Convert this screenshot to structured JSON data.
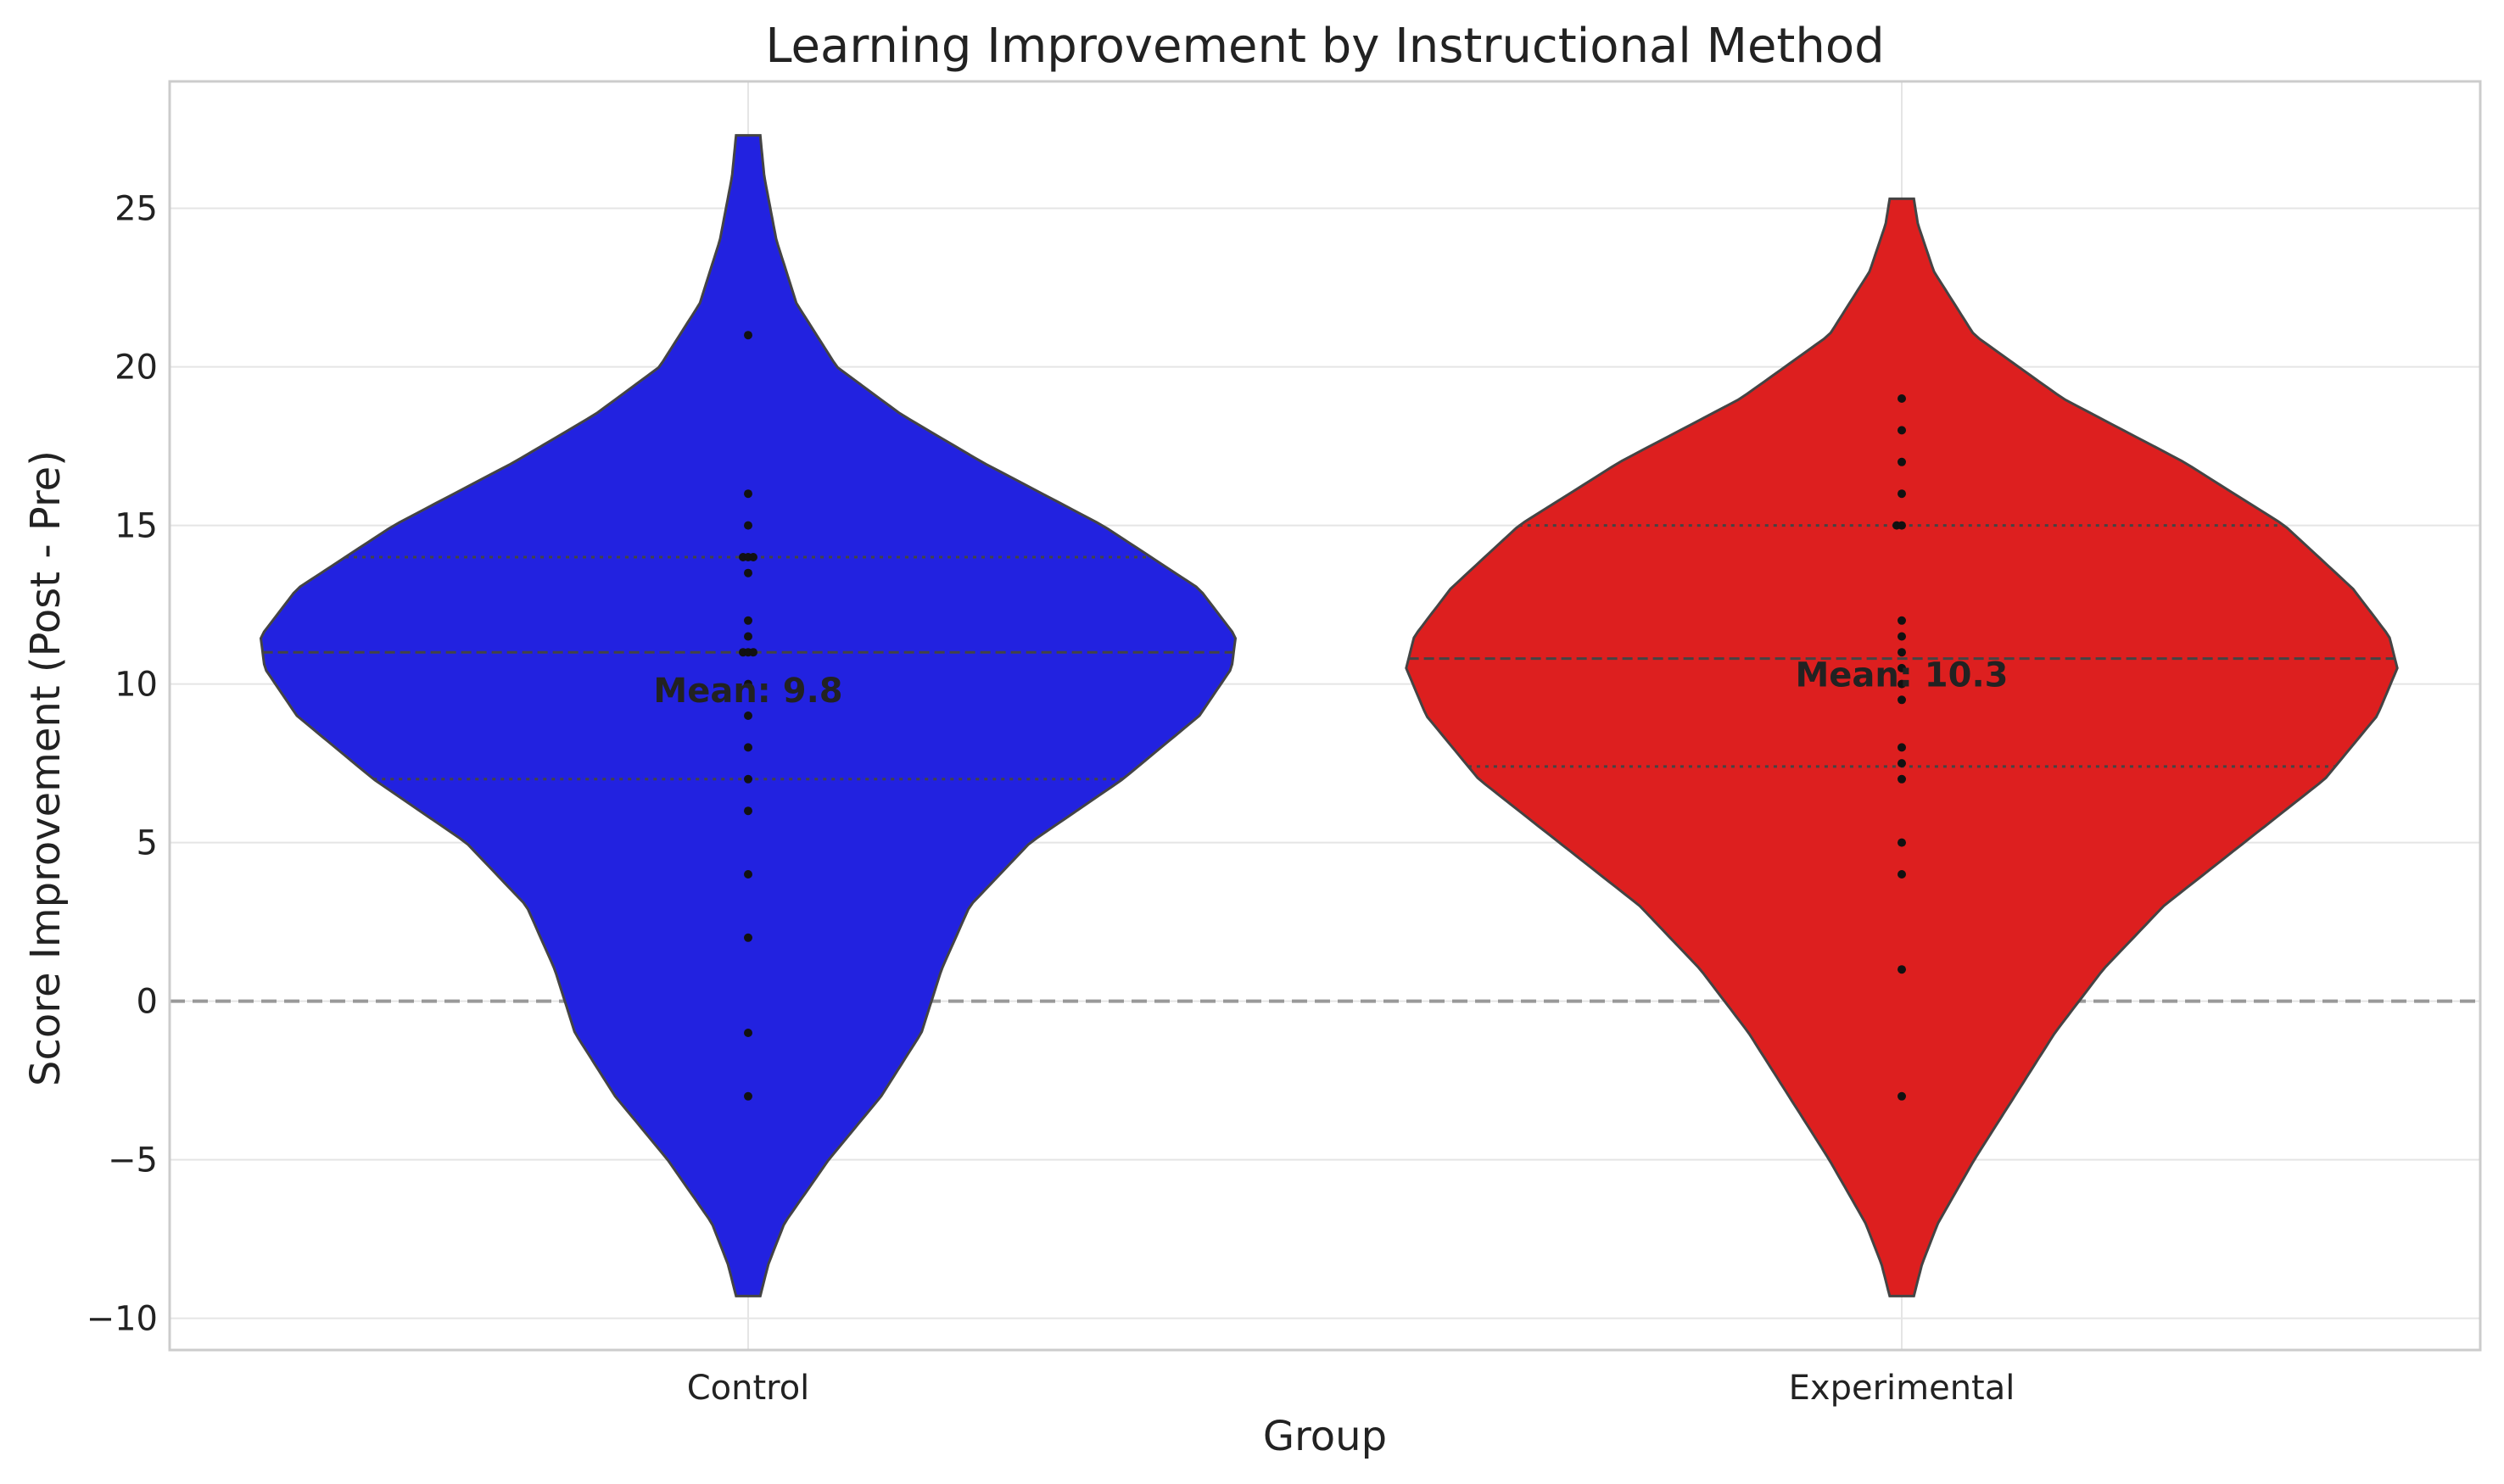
{
  "chart_data": {
    "type": "violin",
    "title": "Learning Improvement by Instructional Method",
    "xlabel": "Group",
    "ylabel": "Score Improvement (Post - Pre)",
    "ylim": [
      -11,
      29
    ],
    "yticks": [
      -10,
      -5,
      0,
      5,
      10,
      15,
      20,
      25
    ],
    "ytick_labels": [
      "−10",
      "−5",
      "0",
      "5",
      "10",
      "15",
      "20",
      "25"
    ],
    "grid": true,
    "reference_line": {
      "y": 0,
      "style": "dashed",
      "color": "#999999"
    },
    "groups": [
      {
        "category": "Control",
        "color": "#2222e0",
        "mean_label": "Mean: 9.8",
        "mean": 9.8,
        "median": 11,
        "q1": 7,
        "q3": 14,
        "range": [
          -9.3,
          27.3
        ],
        "profile": [
          [
            -9.3,
            0.03
          ],
          [
            -8.3,
            0.05
          ],
          [
            -7,
            0.09
          ],
          [
            -5,
            0.2
          ],
          [
            -3,
            0.33
          ],
          [
            -1,
            0.43
          ],
          [
            1,
            0.48
          ],
          [
            3,
            0.55
          ],
          [
            5,
            0.7
          ],
          [
            7,
            0.93
          ],
          [
            9,
            1.12
          ],
          [
            10.5,
            1.2
          ],
          [
            11.5,
            1.21
          ],
          [
            13,
            1.12
          ],
          [
            15,
            0.88
          ],
          [
            17,
            0.58
          ],
          [
            18.5,
            0.38
          ],
          [
            20,
            0.22
          ],
          [
            22,
            0.12
          ],
          [
            24,
            0.07
          ],
          [
            26,
            0.04
          ],
          [
            27.3,
            0.03
          ]
        ],
        "points": [
          [
            0,
            21
          ],
          [
            0,
            16
          ],
          [
            0,
            15
          ],
          [
            -0.06,
            14
          ],
          [
            0,
            14
          ],
          [
            0.06,
            14
          ],
          [
            0,
            13.5
          ],
          [
            0,
            12
          ],
          [
            0,
            11.5
          ],
          [
            -0.06,
            11
          ],
          [
            0,
            11
          ],
          [
            0.06,
            11
          ],
          [
            0,
            10
          ],
          [
            0,
            9
          ],
          [
            0,
            8
          ],
          [
            0,
            7
          ],
          [
            0,
            6
          ],
          [
            0,
            4
          ],
          [
            0,
            2
          ],
          [
            0,
            -1
          ],
          [
            0,
            -3
          ]
        ]
      },
      {
        "category": "Experimental",
        "color": "#dd1f1f",
        "mean_label": "Mean: 10.3",
        "mean": 10.3,
        "median": 10.8,
        "q1": 7.4,
        "q3": 15,
        "range": [
          -9.3,
          25.3
        ],
        "profile": [
          [
            -9.3,
            0.03
          ],
          [
            -8.3,
            0.05
          ],
          [
            -7,
            0.09
          ],
          [
            -5,
            0.18
          ],
          [
            -3,
            0.28
          ],
          [
            -1,
            0.38
          ],
          [
            1,
            0.5
          ],
          [
            3,
            0.65
          ],
          [
            5,
            0.85
          ],
          [
            7,
            1.05
          ],
          [
            9,
            1.18
          ],
          [
            10.5,
            1.23
          ],
          [
            11.5,
            1.21
          ],
          [
            13,
            1.12
          ],
          [
            15,
            0.95
          ],
          [
            17,
            0.7
          ],
          [
            19,
            0.4
          ],
          [
            21,
            0.18
          ],
          [
            23,
            0.08
          ],
          [
            24.5,
            0.04
          ],
          [
            25.3,
            0.03
          ]
        ],
        "points": [
          [
            0,
            19
          ],
          [
            0,
            18
          ],
          [
            0,
            17
          ],
          [
            0,
            16
          ],
          [
            -0.06,
            15
          ],
          [
            0,
            15
          ],
          [
            0,
            12
          ],
          [
            0,
            11.5
          ],
          [
            0,
            11
          ],
          [
            0,
            10.5
          ],
          [
            0,
            10
          ],
          [
            0,
            9.5
          ],
          [
            0,
            8
          ],
          [
            0,
            7.5
          ],
          [
            0,
            7
          ],
          [
            0,
            5
          ],
          [
            0,
            4
          ],
          [
            0,
            1
          ],
          [
            0,
            -3
          ]
        ]
      }
    ]
  }
}
